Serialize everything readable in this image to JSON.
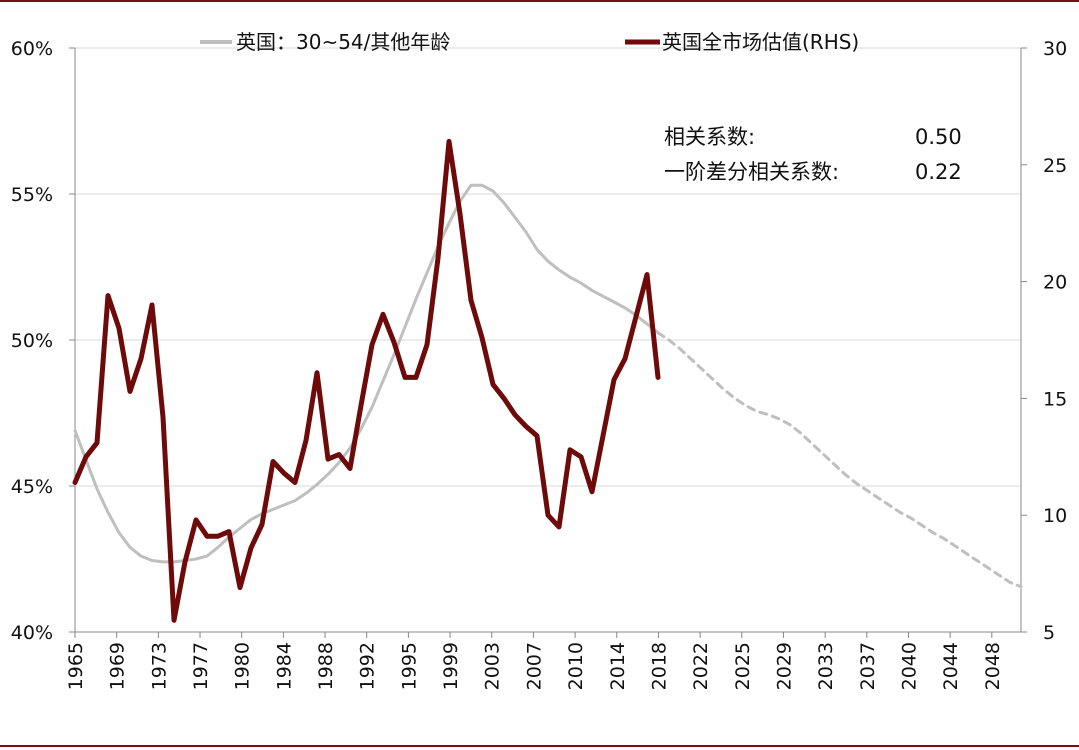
{
  "chart_data": {
    "type": "line",
    "title": "",
    "xlabel": "",
    "ylabel": "",
    "y2label": "",
    "x_tick_labels": [
      "1965",
      "1969",
      "1973",
      "1977",
      "1980",
      "1984",
      "1988",
      "1992",
      "1995",
      "1999",
      "2003",
      "2007",
      "2010",
      "2014",
      "2018",
      "2022",
      "2025",
      "2029",
      "2033",
      "2037",
      "2040",
      "2044",
      "2048"
    ],
    "ylim_left": [
      0.4,
      0.6
    ],
    "y_ticks_left": [
      "40%",
      "45%",
      "50%",
      "55%",
      "60%"
    ],
    "ylim_right": [
      5,
      30
    ],
    "y_ticks_right": [
      "5",
      "10",
      "15",
      "20",
      "25",
      "30"
    ],
    "grid": "horizontal",
    "legend_position": "top",
    "series": [
      {
        "name": "英国：30~54/其他年龄",
        "axis": "left",
        "color": "#bfbfbf",
        "style": "solid",
        "x": [
          1965,
          1966,
          1967,
          1968,
          1969,
          1970,
          1971,
          1972,
          1973,
          1974,
          1975,
          1976,
          1977,
          1978,
          1979,
          1980,
          1981,
          1982,
          1983,
          1984,
          1985,
          1986,
          1987,
          1988,
          1989,
          1990,
          1991,
          1992,
          1993,
          1994,
          1995,
          1996,
          1997,
          1998,
          1999,
          2000,
          2001,
          2002,
          2003,
          2004,
          2005,
          2006,
          2007,
          2008,
          2009,
          2010,
          2011,
          2012,
          2013,
          2014,
          2015,
          2016,
          2017,
          2018
        ],
        "values": [
          0.469,
          0.459,
          0.449,
          0.441,
          0.434,
          0.429,
          0.426,
          0.4245,
          0.424,
          0.424,
          0.4245,
          0.425,
          0.426,
          0.429,
          0.4325,
          0.4355,
          0.4385,
          0.4405,
          0.442,
          0.4435,
          0.445,
          0.4475,
          0.4505,
          0.454,
          0.458,
          0.463,
          0.4695,
          0.477,
          0.486,
          0.495,
          0.5045,
          0.514,
          0.523,
          0.532,
          0.54,
          0.5475,
          0.553,
          0.553,
          0.551,
          0.547,
          0.542,
          0.537,
          0.531,
          0.527,
          0.524,
          0.5215,
          0.5195,
          0.517,
          0.515,
          0.513,
          0.511,
          0.5085,
          0.5055,
          0.5025
        ]
      },
      {
        "name": "",
        "axis": "left",
        "color": "#bfbfbf",
        "style": "dashed",
        "x": [
          2018,
          2019,
          2020,
          2021,
          2022,
          2023,
          2024,
          2025,
          2026,
          2027,
          2028,
          2029,
          2030,
          2031,
          2032,
          2033,
          2034,
          2035,
          2036,
          2037,
          2038,
          2039,
          2040,
          2041,
          2042,
          2043,
          2044,
          2045,
          2046,
          2047,
          2048,
          2049,
          2050,
          2051
        ],
        "values": [
          0.5025,
          0.5,
          0.497,
          0.4935,
          0.49,
          0.4865,
          0.483,
          0.48,
          0.4775,
          0.4755,
          0.4745,
          0.473,
          0.471,
          0.468,
          0.4645,
          0.461,
          0.4575,
          0.454,
          0.451,
          0.4485,
          0.446,
          0.4435,
          0.441,
          0.439,
          0.4365,
          0.434,
          0.432,
          0.4295,
          0.427,
          0.4245,
          0.422,
          0.4195,
          0.417,
          0.4155
        ]
      },
      {
        "name": "英国全市场估值(RHS)",
        "axis": "right",
        "color": "#6e0a0a",
        "style": "solid",
        "x": [
          1965,
          1966,
          1967,
          1968,
          1969,
          1970,
          1971,
          1972,
          1973,
          1974,
          1975,
          1976,
          1977,
          1978,
          1979,
          1980,
          1981,
          1982,
          1983,
          1984,
          1985,
          1986,
          1987,
          1988,
          1989,
          1990,
          1991,
          1992,
          1993,
          1994,
          1995,
          1996,
          1997,
          1998,
          1999,
          2000,
          2001,
          2002,
          2003,
          2004,
          2005,
          2006,
          2007,
          2008,
          2009,
          2010,
          2011,
          2012,
          2013,
          2014,
          2015,
          2016,
          2017,
          2018
        ],
        "values": [
          11.4,
          12.5,
          13.1,
          19.4,
          18.0,
          15.3,
          16.7,
          19.0,
          14.2,
          5.5,
          8.0,
          9.8,
          9.1,
          9.1,
          9.3,
          6.9,
          8.6,
          9.6,
          12.3,
          11.8,
          11.4,
          13.2,
          16.1,
          12.4,
          12.6,
          12.0,
          14.7,
          17.3,
          18.6,
          17.4,
          15.9,
          15.9,
          17.3,
          21.0,
          26.0,
          22.9,
          19.2,
          17.6,
          15.6,
          15.0,
          14.3,
          13.8,
          13.4,
          10.0,
          9.5,
          12.8,
          12.5,
          11.0,
          13.4,
          15.8,
          16.7,
          18.5,
          20.3,
          15.9
        ]
      }
    ],
    "annotations": [
      {
        "label": "相关系数:",
        "value": "0.50"
      },
      {
        "label": "一阶差分相关系数:",
        "value": "0.22"
      }
    ]
  }
}
